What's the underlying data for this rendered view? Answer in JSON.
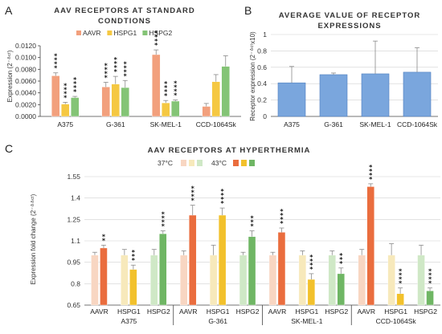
{
  "panel_letters": [
    "A",
    "B",
    "C"
  ],
  "colors": {
    "aavr": "#f2a07d",
    "hspg1": "#f5c842",
    "hspg2": "#84c476",
    "b_bar": "#7aa6dd",
    "aavr_37": "#f8d6c2",
    "hspg1_37": "#f7e9bb",
    "hspg2_37": "#cfe8c6",
    "aavr_43": "#ea6d3e",
    "hspg1_43": "#f2c12c",
    "hspg2_43": "#6fb664"
  },
  "chart_data": [
    {
      "id": "A",
      "type": "bar",
      "title": "AAV RECEPTORS AT STANDARD CONDTIONS",
      "ylabel": "Expression (2⁻ᐞᶜᵗ)",
      "ylim": [
        0,
        0.012
      ],
      "yticks": [
        "0.0000",
        "0.0020",
        "0.0040",
        "0.0060",
        "0.0080",
        "0.0100",
        "0.0120"
      ],
      "categories": [
        "A375",
        "G-361",
        "SK-MEL-1",
        "CCD-1064Sk"
      ],
      "legend": [
        "AAVR",
        "HSPG1",
        "HSPG2"
      ],
      "series": [
        {
          "name": "AAVR",
          "values": [
            0.0069,
            0.005,
            0.0105,
            0.0017
          ],
          "err": [
            0.0005,
            0.0008,
            0.0008,
            0.0005
          ],
          "sig": [
            "****",
            "****",
            "****",
            ""
          ]
        },
        {
          "name": "HSPG1",
          "values": [
            0.0021,
            0.0055,
            0.0023,
            0.0059
          ],
          "err": [
            0.0003,
            0.0013,
            0.0004,
            0.0012
          ],
          "sig": [
            "****",
            "****",
            "****",
            ""
          ]
        },
        {
          "name": "HSPG2",
          "values": [
            0.0032,
            0.0049,
            0.0026,
            0.0085
          ],
          "err": [
            0.0002,
            0.0012,
            0.0002,
            0.0018
          ],
          "sig": [
            "****",
            "****",
            "****",
            ""
          ]
        }
      ]
    },
    {
      "id": "B",
      "type": "bar",
      "title": "AVERAGE VALUE OF RECEPTOR EXPRESSIONS",
      "ylabel": "Receptor expression (2⁻ᐞᶜᵗx10)",
      "ylim": [
        0,
        1
      ],
      "yticks": [
        "0",
        "0.2",
        "0.4",
        "0.6",
        "0.8",
        "1"
      ],
      "categories": [
        "A375",
        "G-361",
        "SK-MEL-1",
        "CCD-1064Sk"
      ],
      "values": [
        0.41,
        0.51,
        0.52,
        0.54
      ],
      "err": [
        0.2,
        0.02,
        0.4,
        0.3
      ]
    },
    {
      "id": "C",
      "type": "bar",
      "title": "AAV RECEPTORS AT HYPERTHERMIA",
      "ylabel": "Expression fold change (2⁻ᐞᐞᶜᵗ)",
      "ylim": [
        0.65,
        1.55
      ],
      "yticks": [
        "0.65",
        "0.8",
        "0.95",
        "1.1",
        "1.25",
        "1.4",
        "1.55"
      ],
      "legend": [
        "37°C",
        "43°C"
      ],
      "groups": [
        "A375",
        "G-361",
        "SK-MEL-1",
        "CCD-1064Sk"
      ],
      "receptors": [
        "AAVR",
        "HSPG1",
        "HSPG2"
      ],
      "series": [
        {
          "name": "37°C",
          "values": [
            [
              1.0,
              1.0,
              1.0
            ],
            [
              1.0,
              1.0,
              1.0
            ],
            [
              1.0,
              1.0,
              1.0
            ],
            [
              1.0,
              1.0,
              1.0
            ]
          ],
          "err": [
            [
              0.02,
              0.04,
              0.04
            ],
            [
              0.03,
              0.07,
              0.02
            ],
            [
              0.02,
              0.03,
              0.03
            ],
            [
              0.04,
              0.08,
              0.07
            ]
          ],
          "sig": [
            [
              "",
              "",
              ""
            ],
            [
              "",
              "",
              ""
            ],
            [
              "",
              "",
              ""
            ],
            [
              "",
              "",
              ""
            ]
          ]
        },
        {
          "name": "43°C",
          "values": [
            [
              1.05,
              0.9,
              1.15
            ],
            [
              1.28,
              1.28,
              1.13
            ],
            [
              1.16,
              0.83,
              0.87
            ],
            [
              1.48,
              0.73,
              0.75
            ]
          ],
          "err": [
            [
              0.02,
              0.03,
              0.02
            ],
            [
              0.07,
              0.05,
              0.04
            ],
            [
              0.03,
              0.04,
              0.04
            ],
            [
              0.02,
              0.04,
              0.02
            ]
          ],
          "sig": [
            [
              "**",
              "***",
              "****"
            ],
            [
              "****",
              "****",
              "***"
            ],
            [
              "****",
              "****",
              "***"
            ],
            [
              "****",
              "****",
              "****"
            ]
          ]
        }
      ]
    }
  ]
}
